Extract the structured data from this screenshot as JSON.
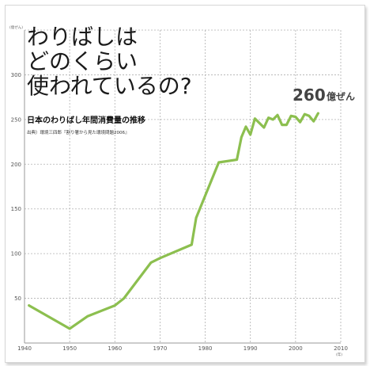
{
  "chart_data": {
    "type": "line",
    "title_lines": [
      "わりばしは",
      "どのくらい",
      "使われているの?"
    ],
    "subtitle": "日本のわりばし年間消費量の推移",
    "source": "出典）環境三四郎『割り箸から見た環境問題2006』",
    "y_unit": "(億ぜん)",
    "x_unit": "(年)",
    "xlim": [
      1940,
      2010
    ],
    "ylim": [
      0,
      350
    ],
    "x_ticks": [
      1940,
      1950,
      1960,
      1970,
      1980,
      1990,
      2000,
      2010
    ],
    "y_ticks": [
      50,
      100,
      150,
      200,
      250,
      300
    ],
    "grid": true,
    "line_color": "#8cbf4f",
    "x": [
      1941,
      1950,
      1954,
      1960,
      1962,
      1968,
      1970,
      1977,
      1978,
      1983,
      1987,
      1988,
      1989,
      1990,
      1991,
      1993,
      1994,
      1995,
      1996,
      1997,
      1998,
      1999,
      2000,
      2001,
      2002,
      2003,
      2004,
      2005
    ],
    "y": [
      42,
      16,
      30,
      42,
      50,
      90,
      95,
      110,
      140,
      202,
      205,
      230,
      242,
      233,
      251,
      241,
      252,
      250,
      255,
      244,
      244,
      254,
      253,
      247,
      256,
      254,
      248,
      257
    ],
    "annotation": {
      "value": "260",
      "unit": "億ぜん"
    }
  }
}
